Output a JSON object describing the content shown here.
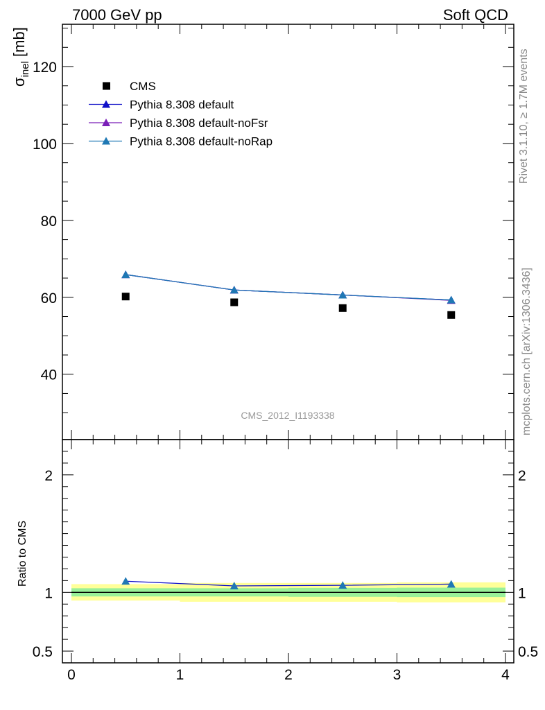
{
  "header": {
    "left": "7000 GeV pp",
    "right": "Soft QCD"
  },
  "side_labels": {
    "rivet": "Rivet 3.1.10, ≥ 1.7M events",
    "mcplots": "mcplots.cern.ch [arXiv:1306.3436]"
  },
  "colors": {
    "cms": "#000000",
    "default": "#1010c8",
    "noFsr": "#7a1fb8",
    "noRap": "#1f78b4",
    "band_inner": "#99f099",
    "band_outer": "#ffff99"
  },
  "chart_data": [
    {
      "type": "scatter",
      "analysis_label": "CMS_2012_I1193338",
      "ylabel_main": "σ",
      "ylabel_sub": "inel",
      "ylabel_unit": " [mb]",
      "xlim": [
        0,
        4
      ],
      "ylim": [
        23,
        131
      ],
      "yticks": [
        40,
        60,
        80,
        100,
        120
      ],
      "legend_position": "top-left",
      "series": [
        {
          "name": "CMS",
          "marker": "square",
          "x": [
            0.5,
            1.5,
            2.5,
            3.5
          ],
          "y": [
            60.2,
            58.7,
            57.2,
            55.4
          ]
        },
        {
          "name": "Pythia 8.308 default",
          "marker": "triangle",
          "x": [
            0.5,
            1.5,
            2.5,
            3.5
          ],
          "y": [
            65.9,
            61.9,
            60.6,
            59.3
          ]
        },
        {
          "name": "Pythia 8.308 default-noFsr",
          "marker": "triangle",
          "x": [
            0.5,
            1.5,
            2.5,
            3.5
          ],
          "y": [
            65.9,
            61.9,
            60.6,
            59.2
          ]
        },
        {
          "name": "Pythia 8.308 default-noRap",
          "marker": "triangle",
          "x": [
            0.5,
            1.5,
            2.5,
            3.5
          ],
          "y": [
            65.9,
            61.9,
            60.6,
            59.3
          ]
        }
      ]
    },
    {
      "type": "line",
      "ylabel": "Ratio to CMS",
      "xlim": [
        0,
        4
      ],
      "xticks": [
        "0",
        "1",
        "2",
        "3",
        "4"
      ],
      "ylim": [
        0.4,
        2.3
      ],
      "ytick_labels": [
        "0.5",
        "1",
        "2"
      ],
      "ytick_values": [
        0.5,
        1,
        2
      ],
      "reference": 1,
      "bands": {
        "x_edges": [
          0,
          1,
          2,
          3,
          4
        ],
        "inner_half_width": [
          0.035,
          0.035,
          0.038,
          0.04
        ],
        "outer_half_width": [
          0.07,
          0.08,
          0.08,
          0.085
        ]
      },
      "series": [
        {
          "name": "Pythia 8.308 default",
          "x": [
            0.5,
            1.5,
            2.5,
            3.5
          ],
          "y": [
            1.095,
            1.055,
            1.06,
            1.07
          ]
        }
      ]
    }
  ]
}
